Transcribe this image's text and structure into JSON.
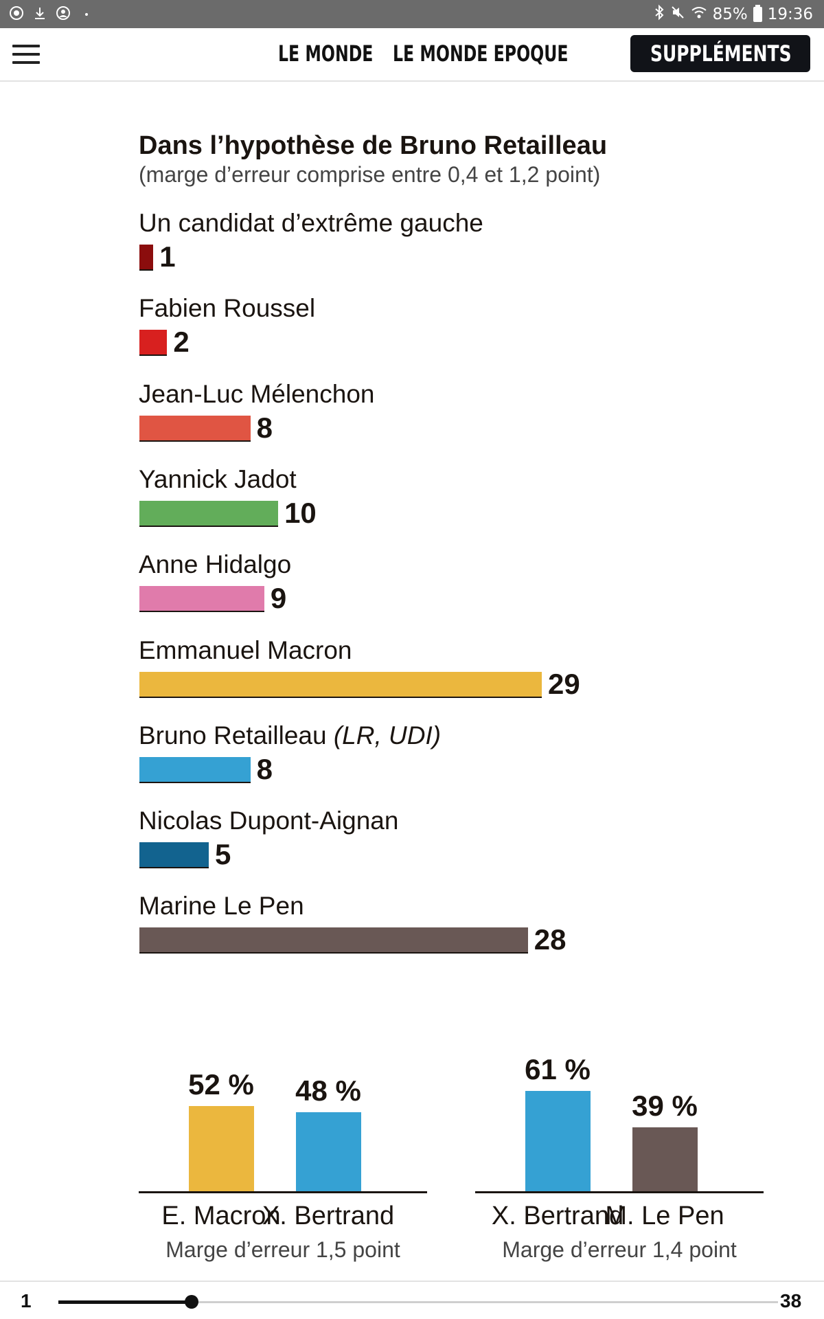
{
  "status_bar": {
    "left_icons": [
      "record-icon",
      "download-icon",
      "account-icon",
      "dot-icon"
    ],
    "battery": "85%",
    "time": "19:36"
  },
  "app_bar": {
    "nav": [
      "LE MONDE",
      "LE MONDE EPOQUE"
    ],
    "supplements": "SUPPLÉMENTS"
  },
  "chart": {
    "title": "Dans l’hypothèse de Bruno Retailleau",
    "subtitle": "(marge d’erreur comprise entre 0,4 et 1,2 point)"
  },
  "chart_data": [
    {
      "type": "bar",
      "orientation": "horizontal",
      "title": "Dans l’hypothèse de Bruno Retailleau",
      "subtitle": "(marge d’erreur comprise entre 0,4 et 1,2 point)",
      "grid": false,
      "categories": [
        "Un candidat d’extrême gauche",
        "Fabien Roussel",
        "Jean-Luc Mélenchon",
        "Yannick Jadot",
        "Anne Hidalgo",
        "Emmanuel Macron",
        "Bruno Retailleau",
        "Nicolas Dupont-Aignan",
        "Marine Le Pen"
      ],
      "annotations": [
        {
          "category": "Bruno Retailleau",
          "text": "(LR, UDI)"
        }
      ],
      "values": [
        1,
        2,
        8,
        10,
        9,
        29,
        8,
        5,
        28
      ],
      "colors": [
        "#8b0d0d",
        "#d8201f",
        "#e05543",
        "#62ad5a",
        "#e07bab",
        "#ebb73e",
        "#35a1d3",
        "#12638f",
        "#695855"
      ],
      "xlim": [
        0,
        29
      ]
    },
    {
      "type": "bar",
      "categories": [
        "E. Macron",
        "X. Bertrand"
      ],
      "values": [
        52,
        48
      ],
      "value_labels": [
        "52 %",
        "48 %"
      ],
      "colors": [
        "#ebb73e",
        "#35a1d3"
      ],
      "note": "Marge d’erreur 1,5 point",
      "ylim": [
        0,
        61
      ]
    },
    {
      "type": "bar",
      "categories": [
        "X. Bertrand",
        "M. Le Pen"
      ],
      "values": [
        61,
        39
      ],
      "value_labels": [
        "61 %",
        "39 %"
      ],
      "colors": [
        "#35a1d3",
        "#695855"
      ],
      "note": "Marge d’erreur 1,4 point",
      "ylim": [
        0,
        61
      ]
    }
  ],
  "pager": {
    "current": "1",
    "total": "38",
    "progress": 0.185
  }
}
